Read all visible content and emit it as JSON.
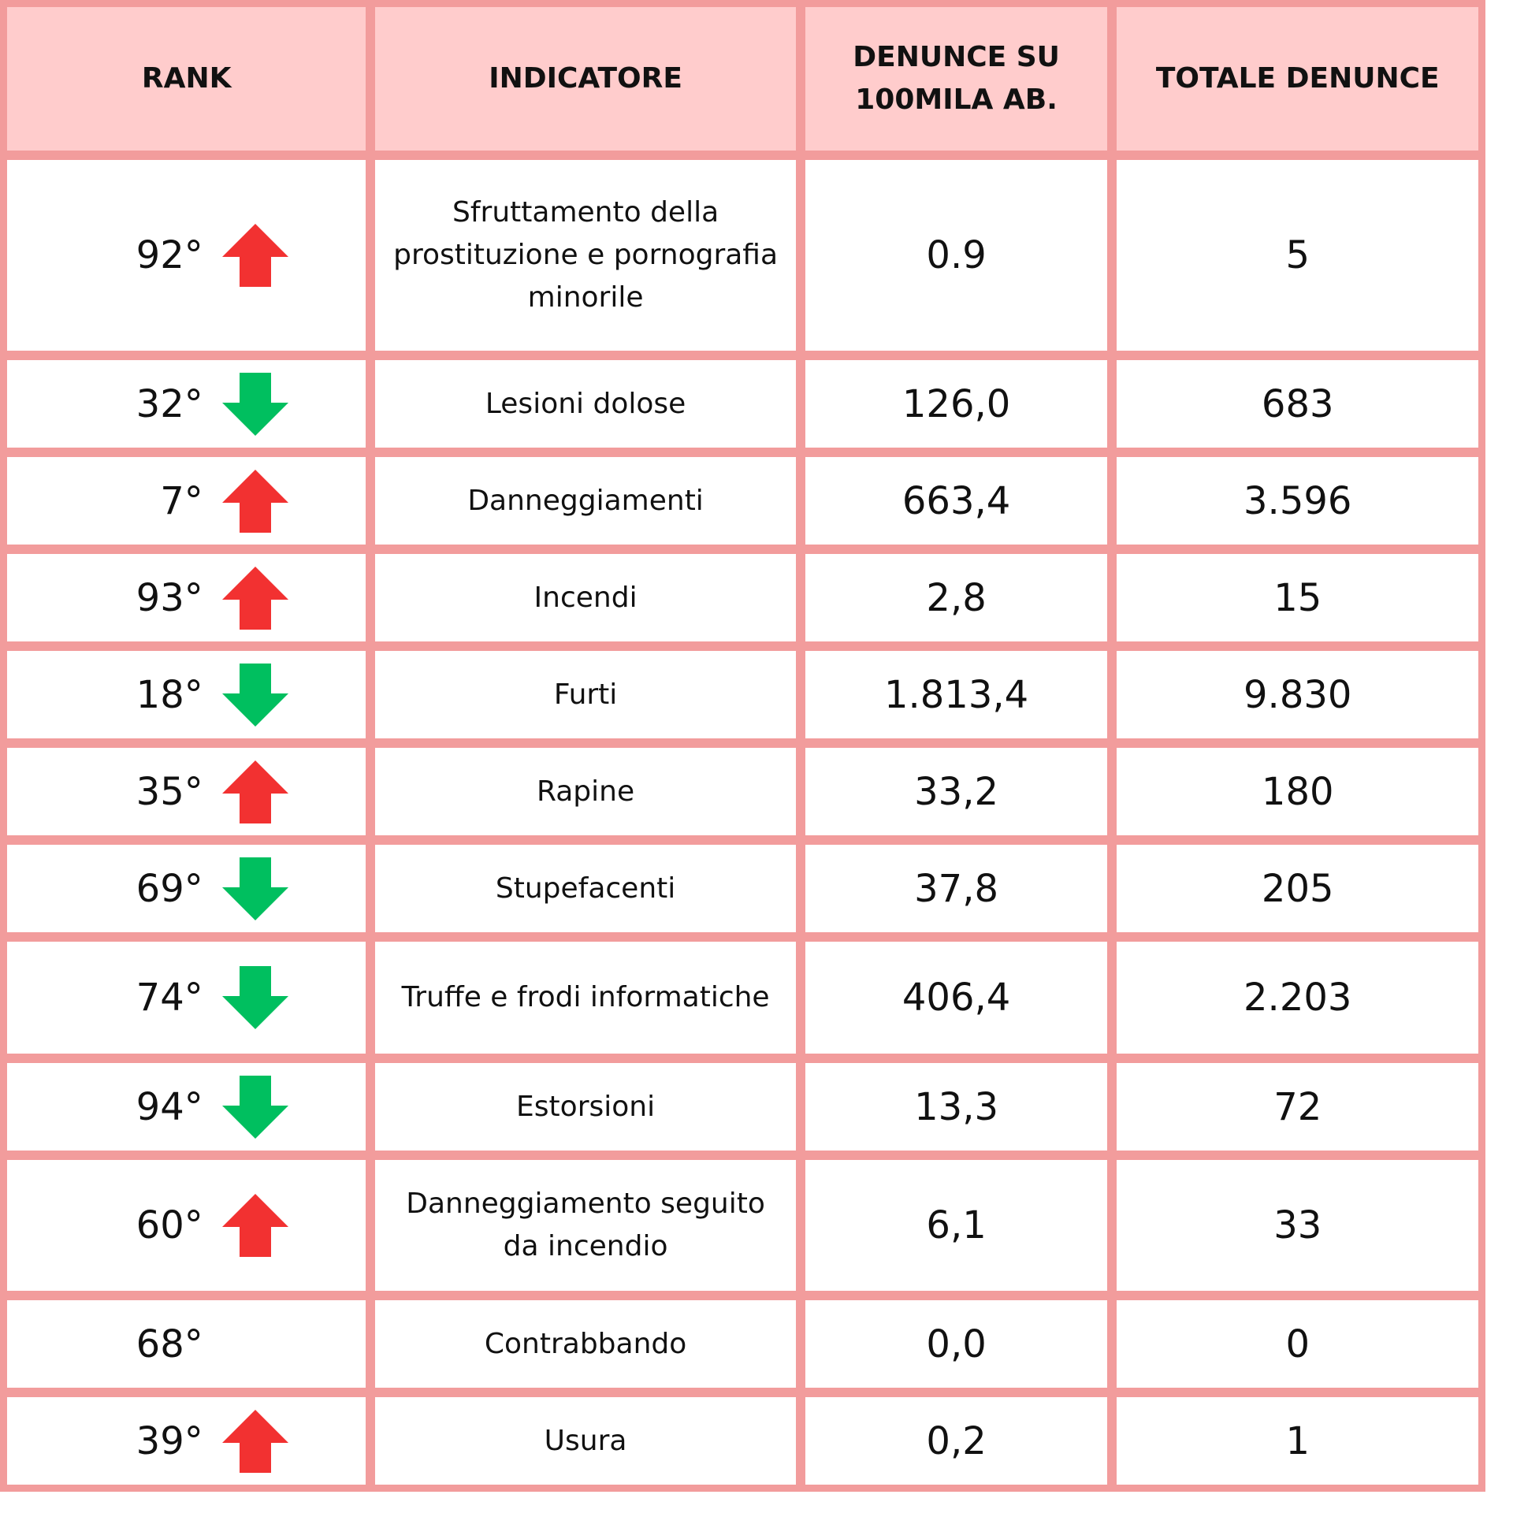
{
  "colors": {
    "header_bg": "#ffcccc",
    "border": "#f29c9c",
    "up": "#f23131",
    "down": "#00bf5f"
  },
  "headers": {
    "rank": "RANK",
    "indicatore": "INDICATORE",
    "denunce_100k_line1": "DENUNCE SU",
    "denunce_100k_line2": "100MILA AB.",
    "totale": "TOTALE DENUNCE"
  },
  "rows": [
    {
      "rank": "92°",
      "trend": "up",
      "indicatore": "Sfruttamento della prostituzione e pornografia minorile",
      "denunce_100k": "0.9",
      "totale": "5"
    },
    {
      "rank": "32°",
      "trend": "down",
      "indicatore": "Lesioni dolose",
      "denunce_100k": "126,0",
      "totale": "683"
    },
    {
      "rank": "7°",
      "trend": "up",
      "indicatore": "Danneggiamenti",
      "denunce_100k": "663,4",
      "totale": "3.596"
    },
    {
      "rank": "93°",
      "trend": "up",
      "indicatore": "Incendi",
      "denunce_100k": "2,8",
      "totale": "15"
    },
    {
      "rank": "18°",
      "trend": "down",
      "indicatore": "Furti",
      "denunce_100k": "1.813,4",
      "totale": "9.830"
    },
    {
      "rank": "35°",
      "trend": "up",
      "indicatore": "Rapine",
      "denunce_100k": "33,2",
      "totale": "180"
    },
    {
      "rank": "69°",
      "trend": "down",
      "indicatore": "Stupefacenti",
      "denunce_100k": "37,8",
      "totale": "205"
    },
    {
      "rank": "74°",
      "trend": "down",
      "indicatore": "Truffe e frodi informatiche",
      "denunce_100k": "406,4",
      "totale": "2.203"
    },
    {
      "rank": "94°",
      "trend": "down",
      "indicatore": "Estorsioni",
      "denunce_100k": "13,3",
      "totale": "72"
    },
    {
      "rank": "60°",
      "trend": "up",
      "indicatore": "Danneggiamento seguito da incendio",
      "denunce_100k": "6,1",
      "totale": "33"
    },
    {
      "rank": "68°",
      "trend": "none",
      "indicatore": "Contrabbando",
      "denunce_100k": "0,0",
      "totale": "0"
    },
    {
      "rank": "39°",
      "trend": "up",
      "indicatore": "Usura",
      "denunce_100k": "0,2",
      "totale": "1"
    }
  ]
}
